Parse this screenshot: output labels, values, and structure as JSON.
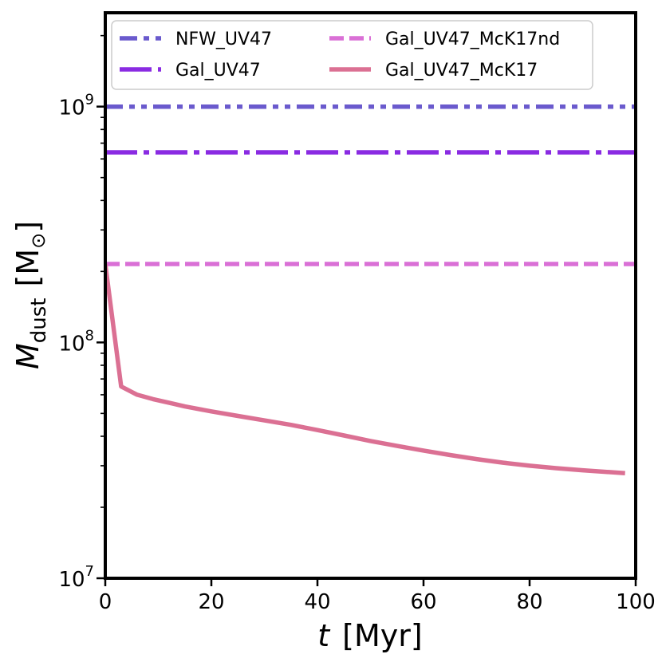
{
  "chart_data": {
    "type": "line",
    "title": "",
    "xlabel_var": "t",
    "xlabel_unit": "[Myr]",
    "ylabel_var": "M",
    "ylabel_sub": "dust",
    "ylabel_unit_open": "[M",
    "ylabel_unit_sym": "⊙",
    "ylabel_unit_close": "]",
    "xlim": [
      0,
      100
    ],
    "ylim": [
      10000000,
      2500000000
    ],
    "yscale": "log",
    "xticks": [
      0,
      20,
      40,
      60,
      80,
      100
    ],
    "xtick_labels": [
      "0",
      "20",
      "40",
      "60",
      "80",
      "100"
    ],
    "yticks": [
      10000000,
      100000000,
      1000000000
    ],
    "ytick_base": "10",
    "ytick_exponents": [
      "7",
      "8",
      "9"
    ],
    "legend_position": "top",
    "series": [
      {
        "name": "NFW_UV47",
        "color": "#6A5ACD",
        "style": "dashdotdot",
        "x": [
          0,
          100
        ],
        "y": [
          1000000000,
          1000000000
        ]
      },
      {
        "name": "Gal_UV47",
        "color": "#8A2BE2",
        "style": "dashdot",
        "x": [
          0,
          100
        ],
        "y": [
          640000000,
          640000000
        ]
      },
      {
        "name": "Gal_UV47_McK17nd",
        "color": "#DA70D6",
        "style": "dashed",
        "x": [
          0,
          100
        ],
        "y": [
          215000000,
          215000000
        ]
      },
      {
        "name": "Gal_UV47_McK17",
        "color": "#DB7093",
        "style": "solid",
        "x": [
          0,
          3,
          6,
          9,
          12,
          15,
          20,
          25,
          30,
          35,
          40,
          45,
          50,
          55,
          60,
          65,
          70,
          75,
          80,
          85,
          90,
          95,
          98
        ],
        "y": [
          215000000,
          65000000,
          60000000,
          57500000,
          55500000,
          53500000,
          51000000,
          48800000,
          46700000,
          44700000,
          42500000,
          40300000,
          38200000,
          36400000,
          34800000,
          33300000,
          32000000,
          30900000,
          30000000,
          29300000,
          28700000,
          28200000,
          27900000
        ]
      }
    ]
  }
}
